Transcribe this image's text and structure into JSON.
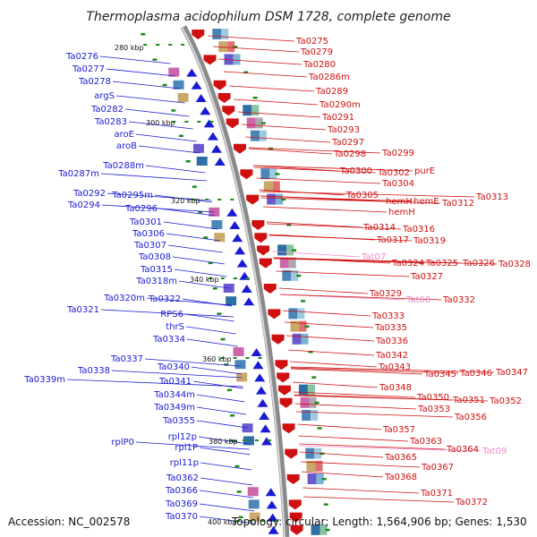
{
  "title": "Thermoplasma acidophilum DSM 1728, complete genome",
  "accession": "Accession: NC_002578",
  "summary": "Topology: circular; Length: 1,564,906 bp; Genes: 1,530",
  "colors": {
    "forward": "#1a1ad4",
    "reverse": "#d01010",
    "rna": "#ee88cc"
  },
  "positions": [
    "280 kbp",
    "300 kbp",
    "320 kbp",
    "340 kbp",
    "360 kbp",
    "380 kbp",
    "400 kbp"
  ],
  "left_labels": [
    "Ta0276",
    "Ta0277",
    "Ta0278",
    "argS",
    "Ta0282",
    "Ta0283",
    "aroE",
    "aroB",
    "Ta0287m",
    "Ta0288m",
    "Ta0292",
    "Ta0295m",
    "Ta0294",
    "Ta0296",
    "Ta0301",
    "Ta0306",
    "Ta0307",
    "Ta0308",
    "Ta0315",
    "Ta0318m",
    "Ta0320m",
    "Ta0322",
    "Ta0321",
    "RPS6",
    "thrS",
    "Ta0334",
    "Ta0337",
    "Ta0338",
    "Ta0340",
    "Ta0339m",
    "Ta0341",
    "Ta0344m",
    "Ta0349m",
    "Ta0355",
    "rpl12p",
    "rplP0",
    "rpl1P",
    "rpl11p",
    "Ta0362",
    "Ta0366",
    "Ta0369",
    "Ta0370"
  ],
  "right_labels": [
    "Ta0275",
    "Ta0279",
    "Ta0280",
    "Ta0286m",
    "Ta0289",
    "Ta0290m",
    "Ta0291",
    "Ta0293",
    "Ta0297",
    "Ta0298",
    "Ta0299",
    "Ta0300",
    "Ta0302",
    "purE",
    "Ta0304",
    "Ta0305",
    "hemH",
    "hemE",
    "Ta0312",
    "Ta0313",
    "hemH",
    "Ta0314",
    "Ta0316",
    "Ta0317",
    "Ta0319",
    "Tat07",
    "Ta0324",
    "Ta0325",
    "Ta0326",
    "Ta0328",
    "Ta0327",
    "Ta0329",
    "Tat08",
    "Ta0332",
    "Ta0333",
    "Ta0335",
    "Ta0336",
    "Ta0342",
    "Ta0343",
    "Ta0345",
    "Ta0346",
    "Ta0347",
    "Ta0348",
    "Ta0350",
    "Ta0351",
    "Ta0352",
    "Ta0353",
    "Ta0356",
    "Ta0357",
    "Ta0363",
    "Ta0364",
    "Tat09",
    "Ta0365",
    "Ta0367",
    "Ta0368",
    "Ta0371",
    "Ta0372"
  ],
  "rna_labels": [
    "Tat07",
    "Tat08",
    "Tat09"
  ]
}
